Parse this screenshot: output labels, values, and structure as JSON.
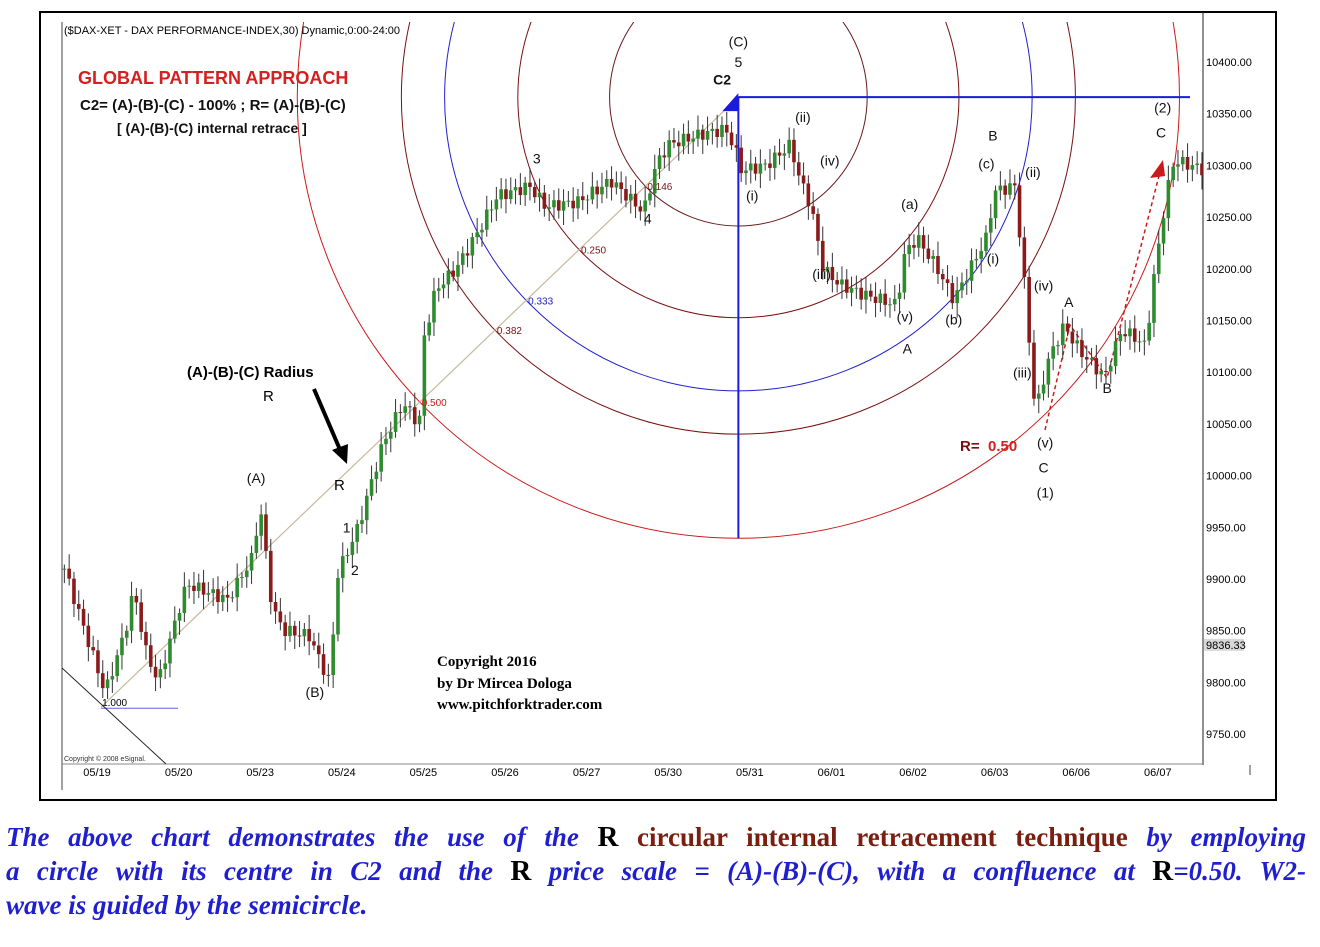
{
  "chart_data": {
    "type": "candlestick",
    "header": "($DAX-XET - DAX PERFORMANCE-INDEX,30) Dynamic,0:00-24:00",
    "title": "GLOBAL PATTERN APPROACH",
    "subtitle": "C2= (A)-(B)-(C) - 100% ;  R= (A)-(B)-(C)",
    "subtitle2": "[ (A)-(B)-(C) internal retrace ]",
    "ylim": [
      9720,
      10440
    ],
    "y_ticks": [
      "10400.00",
      "10350.00",
      "10300.00",
      "10250.00",
      "10200.00",
      "10150.00",
      "10100.00",
      "10050.00",
      "10000.00",
      "9950.00",
      "9900.00",
      "9850.00",
      "9800.00",
      "9750.00"
    ],
    "last_price": "9836.33",
    "x_ticks": [
      "05/19",
      "05/20",
      "05/23",
      "05/24",
      "05/25",
      "05/26",
      "05/27",
      "05/30",
      "05/31",
      "06/01",
      "06/02",
      "06/03",
      "06/06",
      "06/07"
    ],
    "price_path": [
      [
        -0.4,
        9910
      ],
      [
        0.1,
        9790
      ],
      [
        0.35,
        9850
      ],
      [
        0.45,
        9890
      ],
      [
        0.6,
        9830
      ],
      [
        0.75,
        9800
      ],
      [
        1.0,
        9870
      ],
      [
        1.1,
        9895
      ],
      [
        1.6,
        9880
      ],
      [
        1.9,
        9920
      ],
      [
        2.0,
        9970
      ],
      [
        2.15,
        9870
      ],
      [
        2.3,
        9850
      ],
      [
        2.6,
        9845
      ],
      [
        2.85,
        9800
      ],
      [
        2.95,
        9905
      ],
      [
        3.2,
        9950
      ],
      [
        3.5,
        10030
      ],
      [
        3.75,
        10070
      ],
      [
        3.95,
        10050
      ],
      [
        4.0,
        10130
      ],
      [
        4.15,
        10180
      ],
      [
        4.4,
        10200
      ],
      [
        4.7,
        10240
      ],
      [
        4.9,
        10270
      ],
      [
        5.3,
        10280
      ],
      [
        5.5,
        10260
      ],
      [
        5.9,
        10265
      ],
      [
        6.3,
        10285
      ],
      [
        6.7,
        10255
      ],
      [
        6.85,
        10300
      ],
      [
        7.0,
        10320
      ],
      [
        7.4,
        10330
      ],
      [
        7.7,
        10335
      ],
      [
        7.8,
        10320
      ],
      [
        7.9,
        10295
      ],
      [
        8.2,
        10300
      ],
      [
        8.5,
        10320
      ],
      [
        8.6,
        10290
      ],
      [
        8.75,
        10260
      ],
      [
        8.9,
        10200
      ],
      [
        9.1,
        10185
      ],
      [
        9.4,
        10175
      ],
      [
        9.8,
        10165
      ],
      [
        9.9,
        10215
      ],
      [
        10.05,
        10230
      ],
      [
        10.3,
        10200
      ],
      [
        10.5,
        10170
      ],
      [
        10.7,
        10200
      ],
      [
        10.9,
        10230
      ],
      [
        11.0,
        10275
      ],
      [
        11.25,
        10280
      ],
      [
        11.35,
        10200
      ],
      [
        11.5,
        10060
      ],
      [
        11.65,
        10110
      ],
      [
        11.85,
        10145
      ],
      [
        12.05,
        10120
      ],
      [
        12.35,
        10095
      ],
      [
        12.55,
        10140
      ],
      [
        12.7,
        10135
      ],
      [
        12.85,
        10125
      ],
      [
        12.95,
        10190
      ],
      [
        13.1,
        10270
      ],
      [
        13.2,
        10305
      ],
      [
        13.6,
        10295
      ]
    ],
    "c2_point": [
      7.86,
      10366
    ],
    "radius_start": [
      0.05,
      9776
    ],
    "fib_ratios": [
      {
        "label": "0.146",
        "ratio": 0.146,
        "color": "#6b1a1a"
      },
      {
        "label": "0.250",
        "ratio": 0.25,
        "color": "#7a1010"
      },
      {
        "label": "0.333",
        "ratio": 0.333,
        "color": "#2020d0"
      },
      {
        "label": "0.382",
        "ratio": 0.382,
        "color": "#7a1010"
      },
      {
        "label": "0.500",
        "ratio": 0.5,
        "color": "#cc1a1a"
      }
    ],
    "radius_label": "1.000",
    "wave_labels": [
      {
        "t": "(C)",
        "d": 7.86,
        "p": 10415
      },
      {
        "t": "5",
        "d": 7.86,
        "p": 10395
      },
      {
        "t": "C2",
        "d": 7.66,
        "p": 10378
      },
      {
        "t": "3",
        "d": 5.39,
        "p": 10302
      },
      {
        "t": "4",
        "d": 6.75,
        "p": 10244
      },
      {
        "t": "1",
        "d": 3.06,
        "p": 9945
      },
      {
        "t": "2",
        "d": 3.16,
        "p": 9904
      },
      {
        "t": "(A)",
        "d": 1.95,
        "p": 9993
      },
      {
        "t": "(B)",
        "d": 2.67,
        "p": 9786
      },
      {
        "t": "(ii)",
        "d": 8.65,
        "p": 10342
      },
      {
        "t": "(i)",
        "d": 8.03,
        "p": 10266
      },
      {
        "t": "(iv)",
        "d": 8.98,
        "p": 10300
      },
      {
        "t": "(iii)",
        "d": 8.88,
        "p": 10190
      },
      {
        "t": "(a)",
        "d": 9.96,
        "p": 10258
      },
      {
        "t": "(v)",
        "d": 9.9,
        "p": 10149
      },
      {
        "t": "(b)",
        "d": 10.5,
        "p": 10146
      },
      {
        "t": "A",
        "d": 9.93,
        "p": 10118
      },
      {
        "t": "(i)",
        "d": 10.98,
        "p": 10205
      },
      {
        "t": "(c)",
        "d": 10.9,
        "p": 10297
      },
      {
        "t": "B",
        "d": 10.98,
        "p": 10324
      },
      {
        "t": "(ii)",
        "d": 11.47,
        "p": 10289
      },
      {
        "t": "(iv)",
        "d": 11.6,
        "p": 10179
      },
      {
        "t": "(iii)",
        "d": 11.34,
        "p": 10095
      },
      {
        "t": "(v)",
        "d": 11.62,
        "p": 10027
      },
      {
        "t": "C",
        "d": 11.6,
        "p": 10003
      },
      {
        "t": "(1)",
        "d": 11.62,
        "p": 9979
      },
      {
        "t": "A",
        "d": 11.91,
        "p": 10163
      },
      {
        "t": "B",
        "d": 12.38,
        "p": 10080
      },
      {
        "t": "(2)",
        "d": 13.06,
        "p": 10351
      },
      {
        "t": "C",
        "d": 13.04,
        "p": 10327
      }
    ],
    "radius_caption": "(A)-(B)-(C) Radius",
    "r_letter": "R",
    "r_eq": "R=",
    "r_value": "0.50",
    "copyright_lines": [
      "Copyright 2016",
      "by Dr Mircea Dologa",
      "www.pitchforktrader.com"
    ],
    "esignal": "Copyright © 2008 eSignal.",
    "colors": {
      "up": "#2e8b2e",
      "down": "#8b1a1a",
      "blue": "#1a1ae0",
      "red": "#cc1a1a"
    }
  },
  "caption": {
    "l1a": "The above chart demonstrates the use of the ",
    "R": "R",
    "l1b": "circular internal retracement technique",
    "l1c": " by employing",
    "l2a": "a circle with its centre in C2 and the ",
    "l2b": " price scale = (A)-(B)-(C), with a confluence at ",
    "l2c": "=0.50. W2-",
    "l3": "wave is guided by the semicircle."
  }
}
